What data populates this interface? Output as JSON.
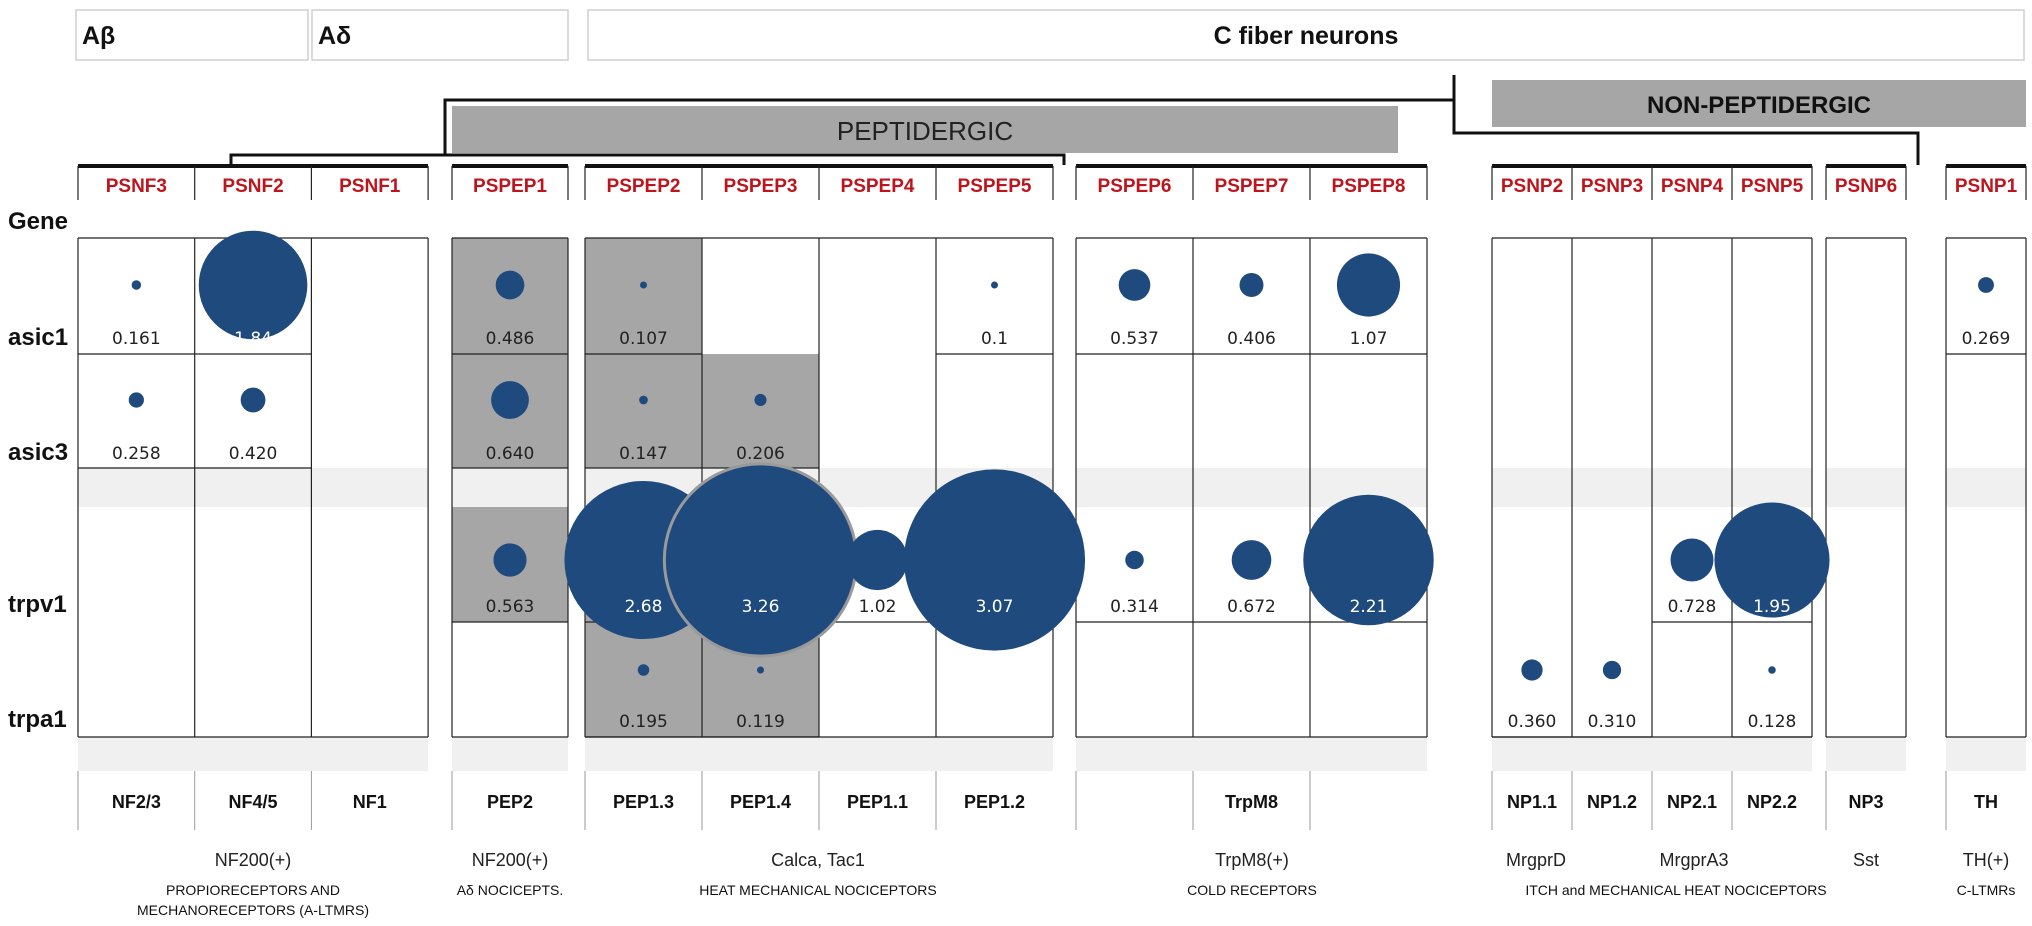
{
  "top_headers": [
    "Aβ",
    "Aδ",
    "C fiber neurons"
  ],
  "peptidergic_label": "PEPTIDERGIC",
  "non_peptidergic_label": "NON-PEPTIDERGIC",
  "gene_header": "Gene",
  "genes": [
    "asic1",
    "asic3",
    "trpv1",
    "trpa1"
  ],
  "columns": [
    {
      "name": "PSNF3",
      "subtype": "NF2/3",
      "values": {
        "asic1": "0.161",
        "asic3": "0.258"
      }
    },
    {
      "name": "PSNF2",
      "subtype": "NF4/5",
      "values": {
        "asic1": "1.84",
        "asic3": "0.420"
      }
    },
    {
      "name": "PSNF1",
      "subtype": "NF1",
      "values": {}
    },
    {
      "name": "PSPEP1",
      "subtype": "PEP2",
      "values": {
        "asic1": "0.486",
        "asic3": "0.640",
        "trpv1": "0.563"
      }
    },
    {
      "name": "PSPEP2",
      "subtype": "PEP1.3",
      "values": {
        "asic1": "0.107",
        "asic3": "0.147",
        "trpv1": "2.68",
        "trpa1": "0.195"
      }
    },
    {
      "name": "PSPEP3",
      "subtype": "PEP1.4",
      "values": {
        "asic3": "0.206",
        "trpv1": "3.26",
        "trpa1": "0.119"
      }
    },
    {
      "name": "PSPEP4",
      "subtype": "PEP1.1",
      "values": {
        "trpv1": "1.02"
      }
    },
    {
      "name": "PSPEP5",
      "subtype": "PEP1.2",
      "values": {
        "asic1": "0.1",
        "trpv1": "3.07"
      }
    },
    {
      "name": "PSPEP6",
      "subtype": "",
      "values": {
        "asic1": "0.537",
        "trpv1": "0.314"
      }
    },
    {
      "name": "PSPEP7",
      "subtype": "TrpM8",
      "values": {
        "asic1": "0.406",
        "trpv1": "0.672"
      }
    },
    {
      "name": "PSPEP8",
      "subtype": "",
      "values": {
        "asic1": "1.07",
        "trpv1": "2.21"
      }
    },
    {
      "name": "PSNP2",
      "subtype": "NP1.1",
      "values": {
        "trpa1": "0.360"
      }
    },
    {
      "name": "PSNP3",
      "subtype": "NP1.2",
      "values": {
        "trpa1": "0.310"
      }
    },
    {
      "name": "PSNP4",
      "subtype": "NP2.1",
      "values": {
        "trpv1": "0.728"
      }
    },
    {
      "name": "PSNP5",
      "subtype": "NP2.2",
      "values": {
        "trpv1": "1.95",
        "trpa1": "0.128"
      }
    },
    {
      "name": "PSNP6",
      "subtype": "NP3",
      "values": {}
    },
    {
      "name": "PSNP1",
      "subtype": "TH",
      "values": {
        "asic1": "0.269"
      }
    }
  ],
  "groups": [
    {
      "marker": "NF200(+)",
      "desc_lines": [
        "PROPIORECEPTORS AND",
        "MECHANORECEPTORS (A-LTMRS)"
      ]
    },
    {
      "marker": "NF200(+)",
      "desc_lines": [
        "Aδ NOCICEPTS."
      ]
    },
    {
      "marker": "Calca, Tac1",
      "desc_lines": [
        "HEAT MECHANICAL NOCICEPTORS"
      ]
    },
    {
      "marker": "TrpM8(+)",
      "desc_lines": [
        "COLD RECEPTORS"
      ]
    },
    {
      "marker": "MrgprD",
      "desc_lines": []
    },
    {
      "marker": "MrgprA3",
      "desc_lines": [
        "ITCH and MECHANICAL HEAT NOCICEPTORS"
      ]
    },
    {
      "marker": "Sst",
      "desc_lines": []
    },
    {
      "marker": "TH(+)",
      "desc_lines": [
        "C-LTMRs"
      ]
    }
  ],
  "colors": {
    "bubble": "#1f4a7e",
    "shade": "#a6a6a6",
    "band": "#f0f0f0",
    "popname": "#c0141c"
  }
}
